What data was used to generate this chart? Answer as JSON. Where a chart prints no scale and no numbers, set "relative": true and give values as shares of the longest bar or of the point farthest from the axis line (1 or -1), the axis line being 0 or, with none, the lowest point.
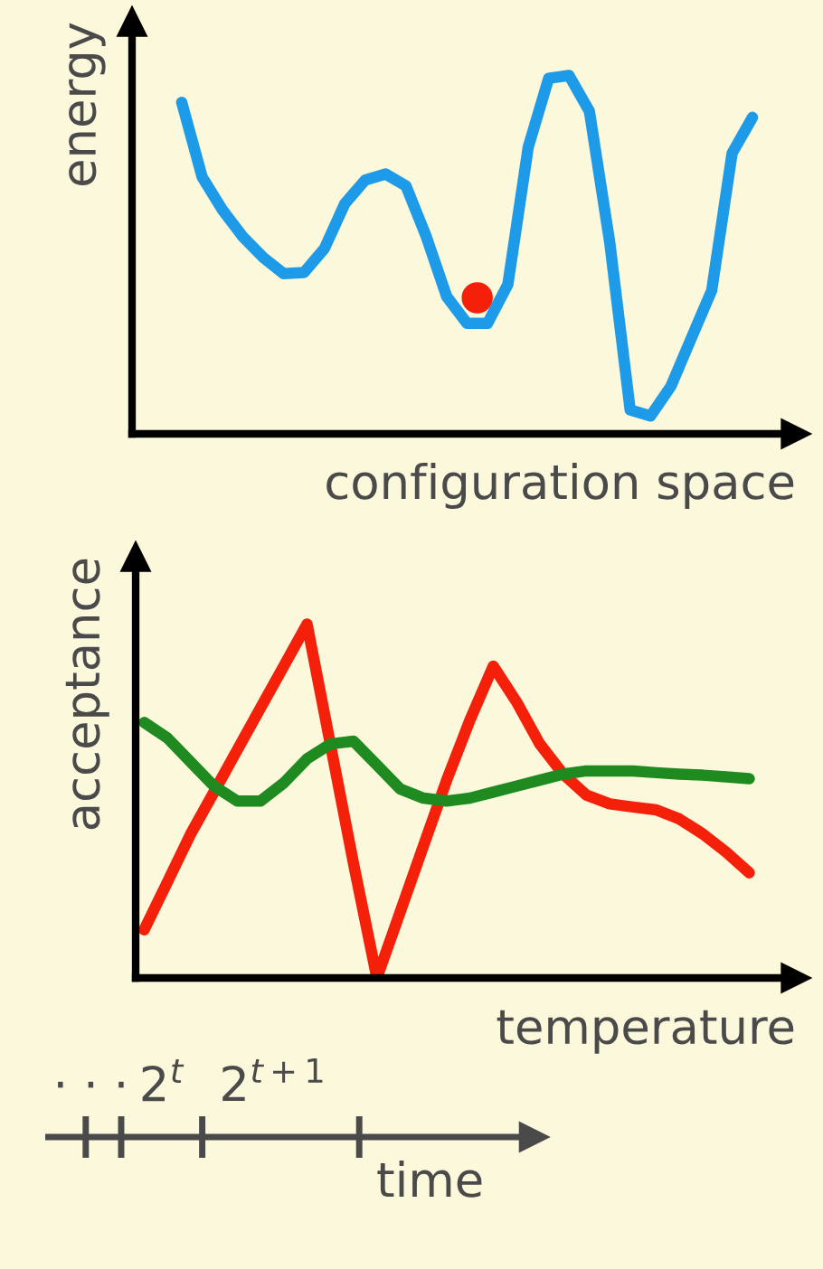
{
  "chart_data": [
    {
      "type": "line",
      "relative": true,
      "ylabel": "energy",
      "xlabel": "configuration space",
      "categories": [
        null,
        null,
        null,
        null,
        null,
        null,
        null,
        null,
        null,
        null,
        null,
        null,
        null,
        null,
        null,
        null,
        null,
        null,
        null,
        null,
        null,
        null,
        null,
        null,
        null,
        null,
        null,
        null,
        null
      ],
      "series": [
        {
          "type": "line",
          "color": "#1e9be8",
          "values": [
            0.925,
            0.717,
            0.625,
            0.55,
            0.492,
            0.447,
            0.45,
            0.517,
            0.642,
            0.708,
            0.725,
            0.692,
            0.55,
            0.383,
            0.308,
            0.308,
            0.417,
            0.8,
            0.992,
            1.0,
            0.9,
            0.533,
            0.067,
            0.05,
            0.133,
            0.267,
            0.4,
            0.783,
            0.883
          ]
        }
      ]
    },
    {
      "type": "line",
      "relative": true,
      "ylabel": "acceptance",
      "xlabel": "temperature",
      "categories": [
        null,
        null,
        null,
        null,
        null,
        null,
        null,
        null,
        null,
        null,
        null,
        null,
        null,
        null,
        null,
        null,
        null,
        null,
        null,
        null,
        null,
        null,
        null,
        null,
        null,
        null,
        null
      ],
      "series": [
        {
          "type": "line",
          "color": "#f5200a",
          "values": [
            0.136,
            0.271,
            0.407,
            0.525,
            0.644,
            0.763,
            0.881,
            1.0,
            0.661,
            0.322,
            0.0,
            0.186,
            0.373,
            0.559,
            0.729,
            0.881,
            0.78,
            0.661,
            0.576,
            0.517,
            0.492,
            0.483,
            0.475,
            0.449,
            0.407,
            0.356,
            0.297
          ]
        },
        {
          "type": "line",
          "color": "#1f8a1f",
          "values": [
            0.722,
            0.678,
            0.61,
            0.542,
            0.5,
            0.5,
            0.551,
            0.619,
            0.661,
            0.669,
            0.602,
            0.534,
            0.508,
            0.5,
            0.508,
            0.525,
            0.542,
            0.559,
            0.576,
            0.585,
            0.585,
            0.585,
            0.58,
            0.576,
            0.573,
            0.568,
            0.563
          ]
        }
      ]
    },
    {
      "type": "other",
      "xlabel": "time",
      "annotations": [
        "· · ·",
        "2$^{t}$",
        "2$^{t+1}$"
      ]
    }
  ]
}
